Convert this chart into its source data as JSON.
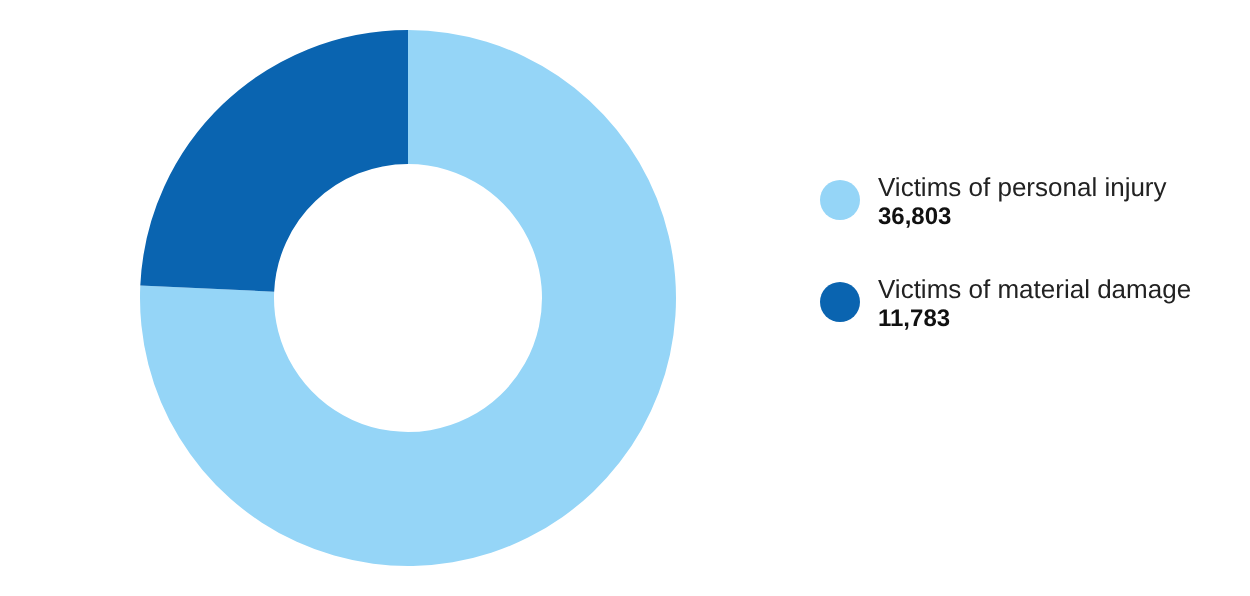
{
  "chart_data": {
    "type": "donut",
    "categories": [
      "Victims of personal injury",
      "Victims of material damage"
    ],
    "values": [
      36803,
      11783
    ],
    "value_labels": [
      "36,803",
      "11,783"
    ],
    "colors": [
      "#95d5f7",
      "#0a64b0"
    ],
    "legend": "right"
  }
}
